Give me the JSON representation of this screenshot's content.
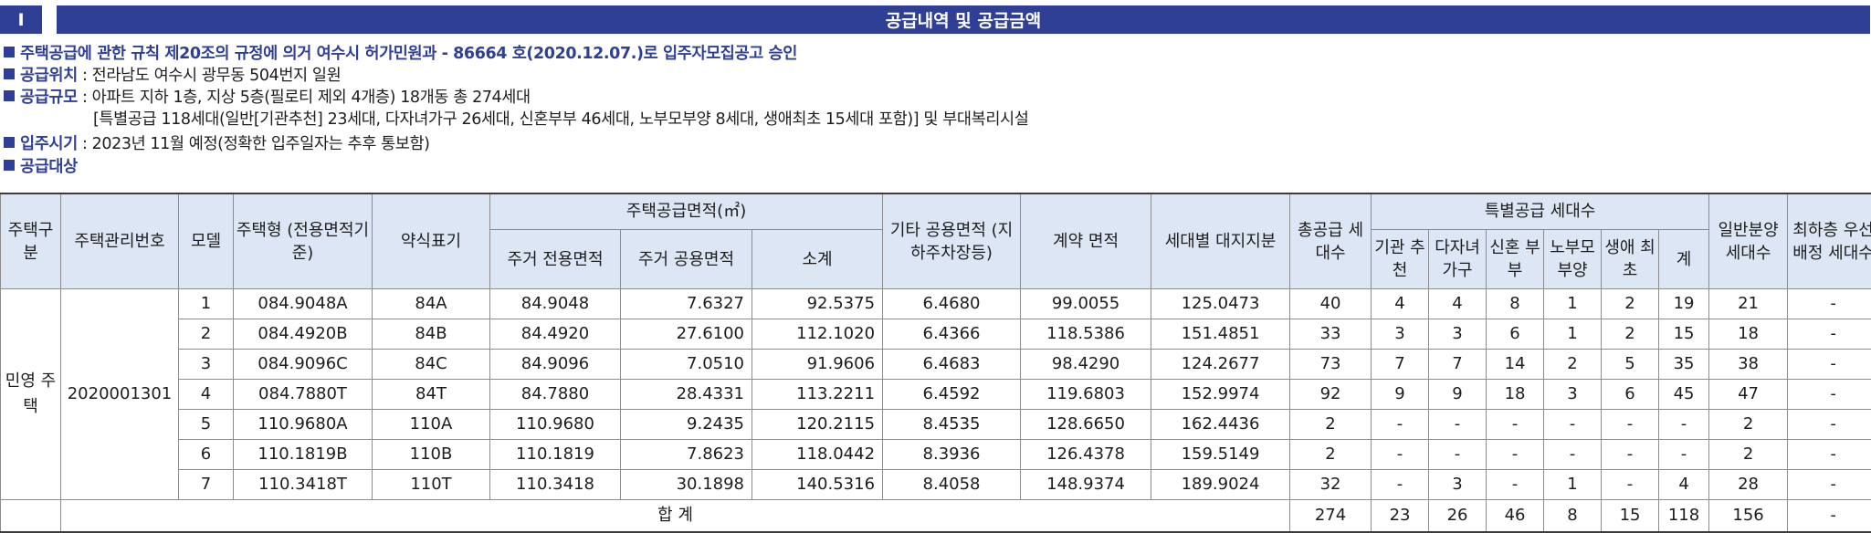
{
  "title": {
    "number": "I",
    "text": "공급내역 및 공급금액"
  },
  "notice": "주택공급에 관한 규칙 제20조의 규정에 의거 여수시 허가민원과 - 86664 호(2020.12.07.)로 입주자모집공고 승인",
  "location": {
    "label": "공급위치",
    "value": " : 전라남도 여수시 광무동 504번지 일원"
  },
  "scale": {
    "label": "공급규모",
    "value": " : 아파트 지하 1층, 지상 5층(필로티 제외 4개층) 18개동 총 274세대",
    "value2": "[특별공급 118세대(일반[기관추천] 23세대, 다자녀가구 26세대, 신혼부부 46세대, 노부모부양 8세대, 생애최초 15세대 포함)] 및 부대복리시설"
  },
  "movein": {
    "label": "입주시기",
    "value": " : 2023년 11월 예정(정확한 입주일자는 추후 통보함)"
  },
  "target": {
    "label": "공급대상"
  },
  "table": {
    "headers": {
      "housing_type_class": "주택구분",
      "mgmt_no": "주택관리번호",
      "model": "모델",
      "housing_type": "주택형 (전용면적기준)",
      "abbr": "약식표기",
      "area_group": "주택공급면적(㎡)",
      "exclusive": "주거 전용면적",
      "common": "주거 공용면적",
      "subtotal": "소계",
      "other_common": "기타 공용면적 (지하주차장등)",
      "contract": "계약 면적",
      "land": "세대별 대지지분",
      "total_units": "총공급 세대수",
      "special_group": "특별공급 세대수",
      "special_cols": [
        "기관 추천",
        "다자녀 가구",
        "신혼 부부",
        "노부모 부양",
        "생애 최초",
        "계"
      ],
      "general": "일반분양 세대수",
      "top_floor": "최하층 우선배정 세대수"
    },
    "class_label": "민영 주택",
    "mgmt_value": "2020001301",
    "rows": [
      {
        "model": "1",
        "type": "084.9048A",
        "abbr": "84A",
        "exclusive": "84.9048",
        "common": "7.6327",
        "subtotal": "92.5375",
        "other": "6.4680",
        "contract": "99.0055",
        "land": "125.0473",
        "total": "40",
        "s1": "4",
        "s2": "4",
        "s3": "8",
        "s4": "1",
        "s5": "2",
        "s_sum": "19",
        "general": "21",
        "top": "-"
      },
      {
        "model": "2",
        "type": "084.4920B",
        "abbr": "84B",
        "exclusive": "84.4920",
        "common": "27.6100",
        "subtotal": "112.1020",
        "other": "6.4366",
        "contract": "118.5386",
        "land": "151.4851",
        "total": "33",
        "s1": "3",
        "s2": "3",
        "s3": "6",
        "s4": "1",
        "s5": "2",
        "s_sum": "15",
        "general": "18",
        "top": "-"
      },
      {
        "model": "3",
        "type": "084.9096C",
        "abbr": "84C",
        "exclusive": "84.9096",
        "common": "7.0510",
        "subtotal": "91.9606",
        "other": "6.4683",
        "contract": "98.4290",
        "land": "124.2677",
        "total": "73",
        "s1": "7",
        "s2": "7",
        "s3": "14",
        "s4": "2",
        "s5": "5",
        "s_sum": "35",
        "general": "38",
        "top": "-"
      },
      {
        "model": "4",
        "type": "084.7880T",
        "abbr": "84T",
        "exclusive": "84.7880",
        "common": "28.4331",
        "subtotal": "113.2211",
        "other": "6.4592",
        "contract": "119.6803",
        "land": "152.9974",
        "total": "92",
        "s1": "9",
        "s2": "9",
        "s3": "18",
        "s4": "3",
        "s5": "6",
        "s_sum": "45",
        "general": "47",
        "top": "-"
      },
      {
        "model": "5",
        "type": "110.9680A",
        "abbr": "110A",
        "exclusive": "110.9680",
        "common": "9.2435",
        "subtotal": "120.2115",
        "other": "8.4535",
        "contract": "128.6650",
        "land": "162.4436",
        "total": "2",
        "s1": "-",
        "s2": "-",
        "s3": "-",
        "s4": "-",
        "s5": "-",
        "s_sum": "-",
        "general": "2",
        "top": "-"
      },
      {
        "model": "6",
        "type": "110.1819B",
        "abbr": "110B",
        "exclusive": "110.1819",
        "common": "7.8623",
        "subtotal": "118.0442",
        "other": "8.3936",
        "contract": "126.4378",
        "land": "159.5149",
        "total": "2",
        "s1": "-",
        "s2": "-",
        "s3": "-",
        "s4": "-",
        "s5": "-",
        "s_sum": "-",
        "general": "2",
        "top": "-"
      },
      {
        "model": "7",
        "type": "110.3418T",
        "abbr": "110T",
        "exclusive": "110.3418",
        "common": "30.1898",
        "subtotal": "140.5316",
        "other": "8.4058",
        "contract": "148.9374",
        "land": "189.9024",
        "total": "32",
        "s1": "-",
        "s2": "3",
        "s3": "-",
        "s4": "1",
        "s5": "-",
        "s_sum": "4",
        "general": "28",
        "top": "-"
      }
    ],
    "total_row": {
      "label": "합 계",
      "total": "274",
      "s1": "23",
      "s2": "26",
      "s3": "46",
      "s4": "8",
      "s5": "15",
      "s_sum": "118",
      "general": "156",
      "top": "-"
    }
  }
}
